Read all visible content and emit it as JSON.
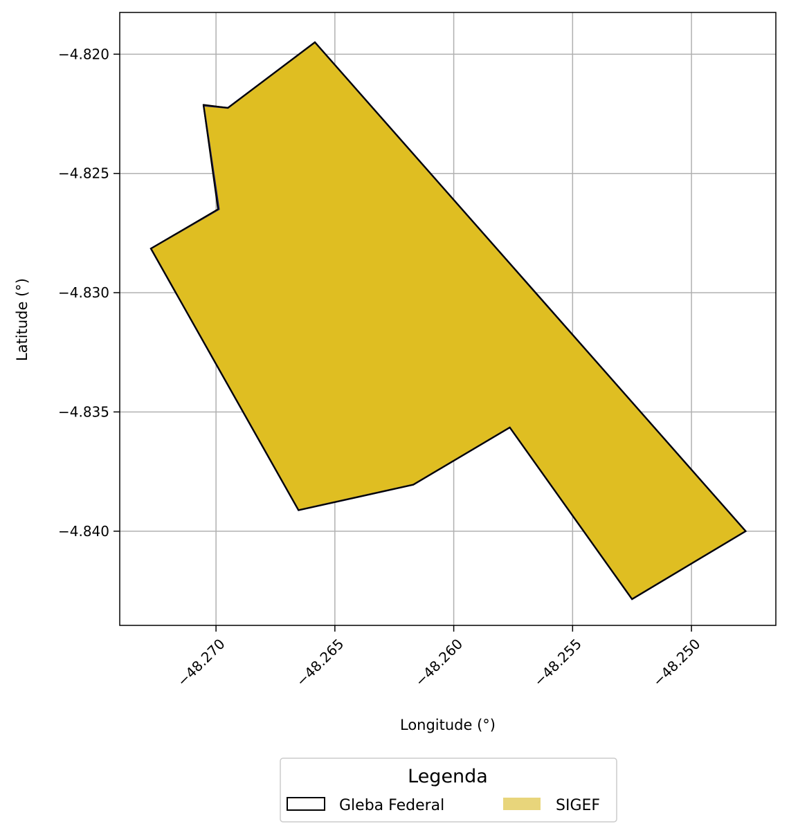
{
  "chart_data": {
    "type": "map",
    "xlabel": "Longitude (°)",
    "ylabel": "Latitude (°)",
    "xlim": [
      -48.27405,
      -48.24645
    ],
    "ylim": [
      -4.84395,
      -4.81825
    ],
    "xticks": [
      -48.27,
      -48.265,
      -48.26,
      -48.255,
      -48.25
    ],
    "xtick_labels": [
      "−48.270",
      "−48.265",
      "−48.260",
      "−48.255",
      "−48.250"
    ],
    "yticks": [
      -4.82,
      -4.825,
      -4.83,
      -4.835,
      -4.84
    ],
    "ytick_labels": [
      "−4.820",
      "−4.825",
      "−4.830",
      "−4.835",
      "−4.840"
    ],
    "grid": true,
    "series": [
      {
        "name": "SIGEF",
        "color": "#dfbe22",
        "polygon": [
          [
            -48.26584,
            -4.8195
          ],
          [
            -48.24772,
            -4.84
          ],
          [
            -48.2525,
            -4.84285
          ],
          [
            -48.25764,
            -4.83565
          ],
          [
            -48.2617,
            -4.83805
          ],
          [
            -48.26653,
            -4.83912
          ],
          [
            -48.27274,
            -4.82815
          ],
          [
            -48.26988,
            -4.8265
          ],
          [
            -48.27052,
            -4.82215
          ],
          [
            -48.2695,
            -4.82225
          ]
        ]
      },
      {
        "name": "Gleba Federal",
        "color": "#000000",
        "polygon": [
          [
            -48.26584,
            -4.8195
          ],
          [
            -48.24772,
            -4.84
          ],
          [
            -48.2525,
            -4.84285
          ],
          [
            -48.25764,
            -4.83565
          ],
          [
            -48.2617,
            -4.83805
          ],
          [
            -48.26653,
            -4.83912
          ],
          [
            -48.27274,
            -4.82815
          ],
          [
            -48.26992,
            -4.8265
          ],
          [
            -48.27053,
            -4.82212
          ],
          [
            -48.2695,
            -4.82225
          ]
        ]
      }
    ],
    "legend": {
      "title": "Legenda",
      "placement": "bottom-center",
      "items": [
        {
          "label": "Gleba Federal",
          "style": "outline",
          "color": "#000000"
        },
        {
          "label": "SIGEF",
          "style": "fill",
          "color": "#e8d57b"
        }
      ]
    }
  }
}
